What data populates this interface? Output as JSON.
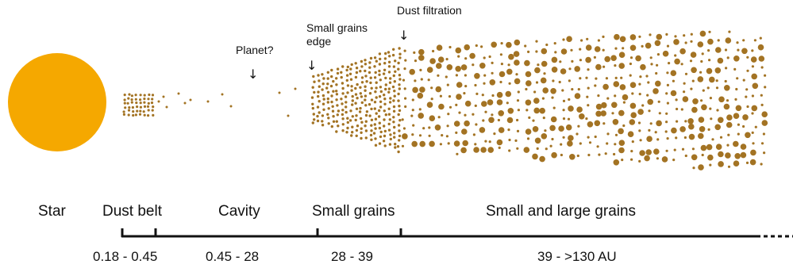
{
  "colors": {
    "star": "#F5A800",
    "grain": "#A37323",
    "axis": "#111111"
  },
  "annotations": {
    "planet": "Planet?",
    "small_grains_edge_line1": "Small grains",
    "small_grains_edge_line2": "edge",
    "dust_filtration": "Dust filtration",
    "arrow_glyph": "↓"
  },
  "regions": [
    {
      "label": "Star"
    },
    {
      "label": "Dust belt"
    },
    {
      "label": "Cavity"
    },
    {
      "label": "Small grains"
    },
    {
      "label": "Small and large grains"
    }
  ],
  "ranges": [
    {
      "label": "0.18 - 0.45"
    },
    {
      "label": "0.45 - 28"
    },
    {
      "label": "28 - 39"
    },
    {
      "label": "39 - >130 AU"
    }
  ]
}
